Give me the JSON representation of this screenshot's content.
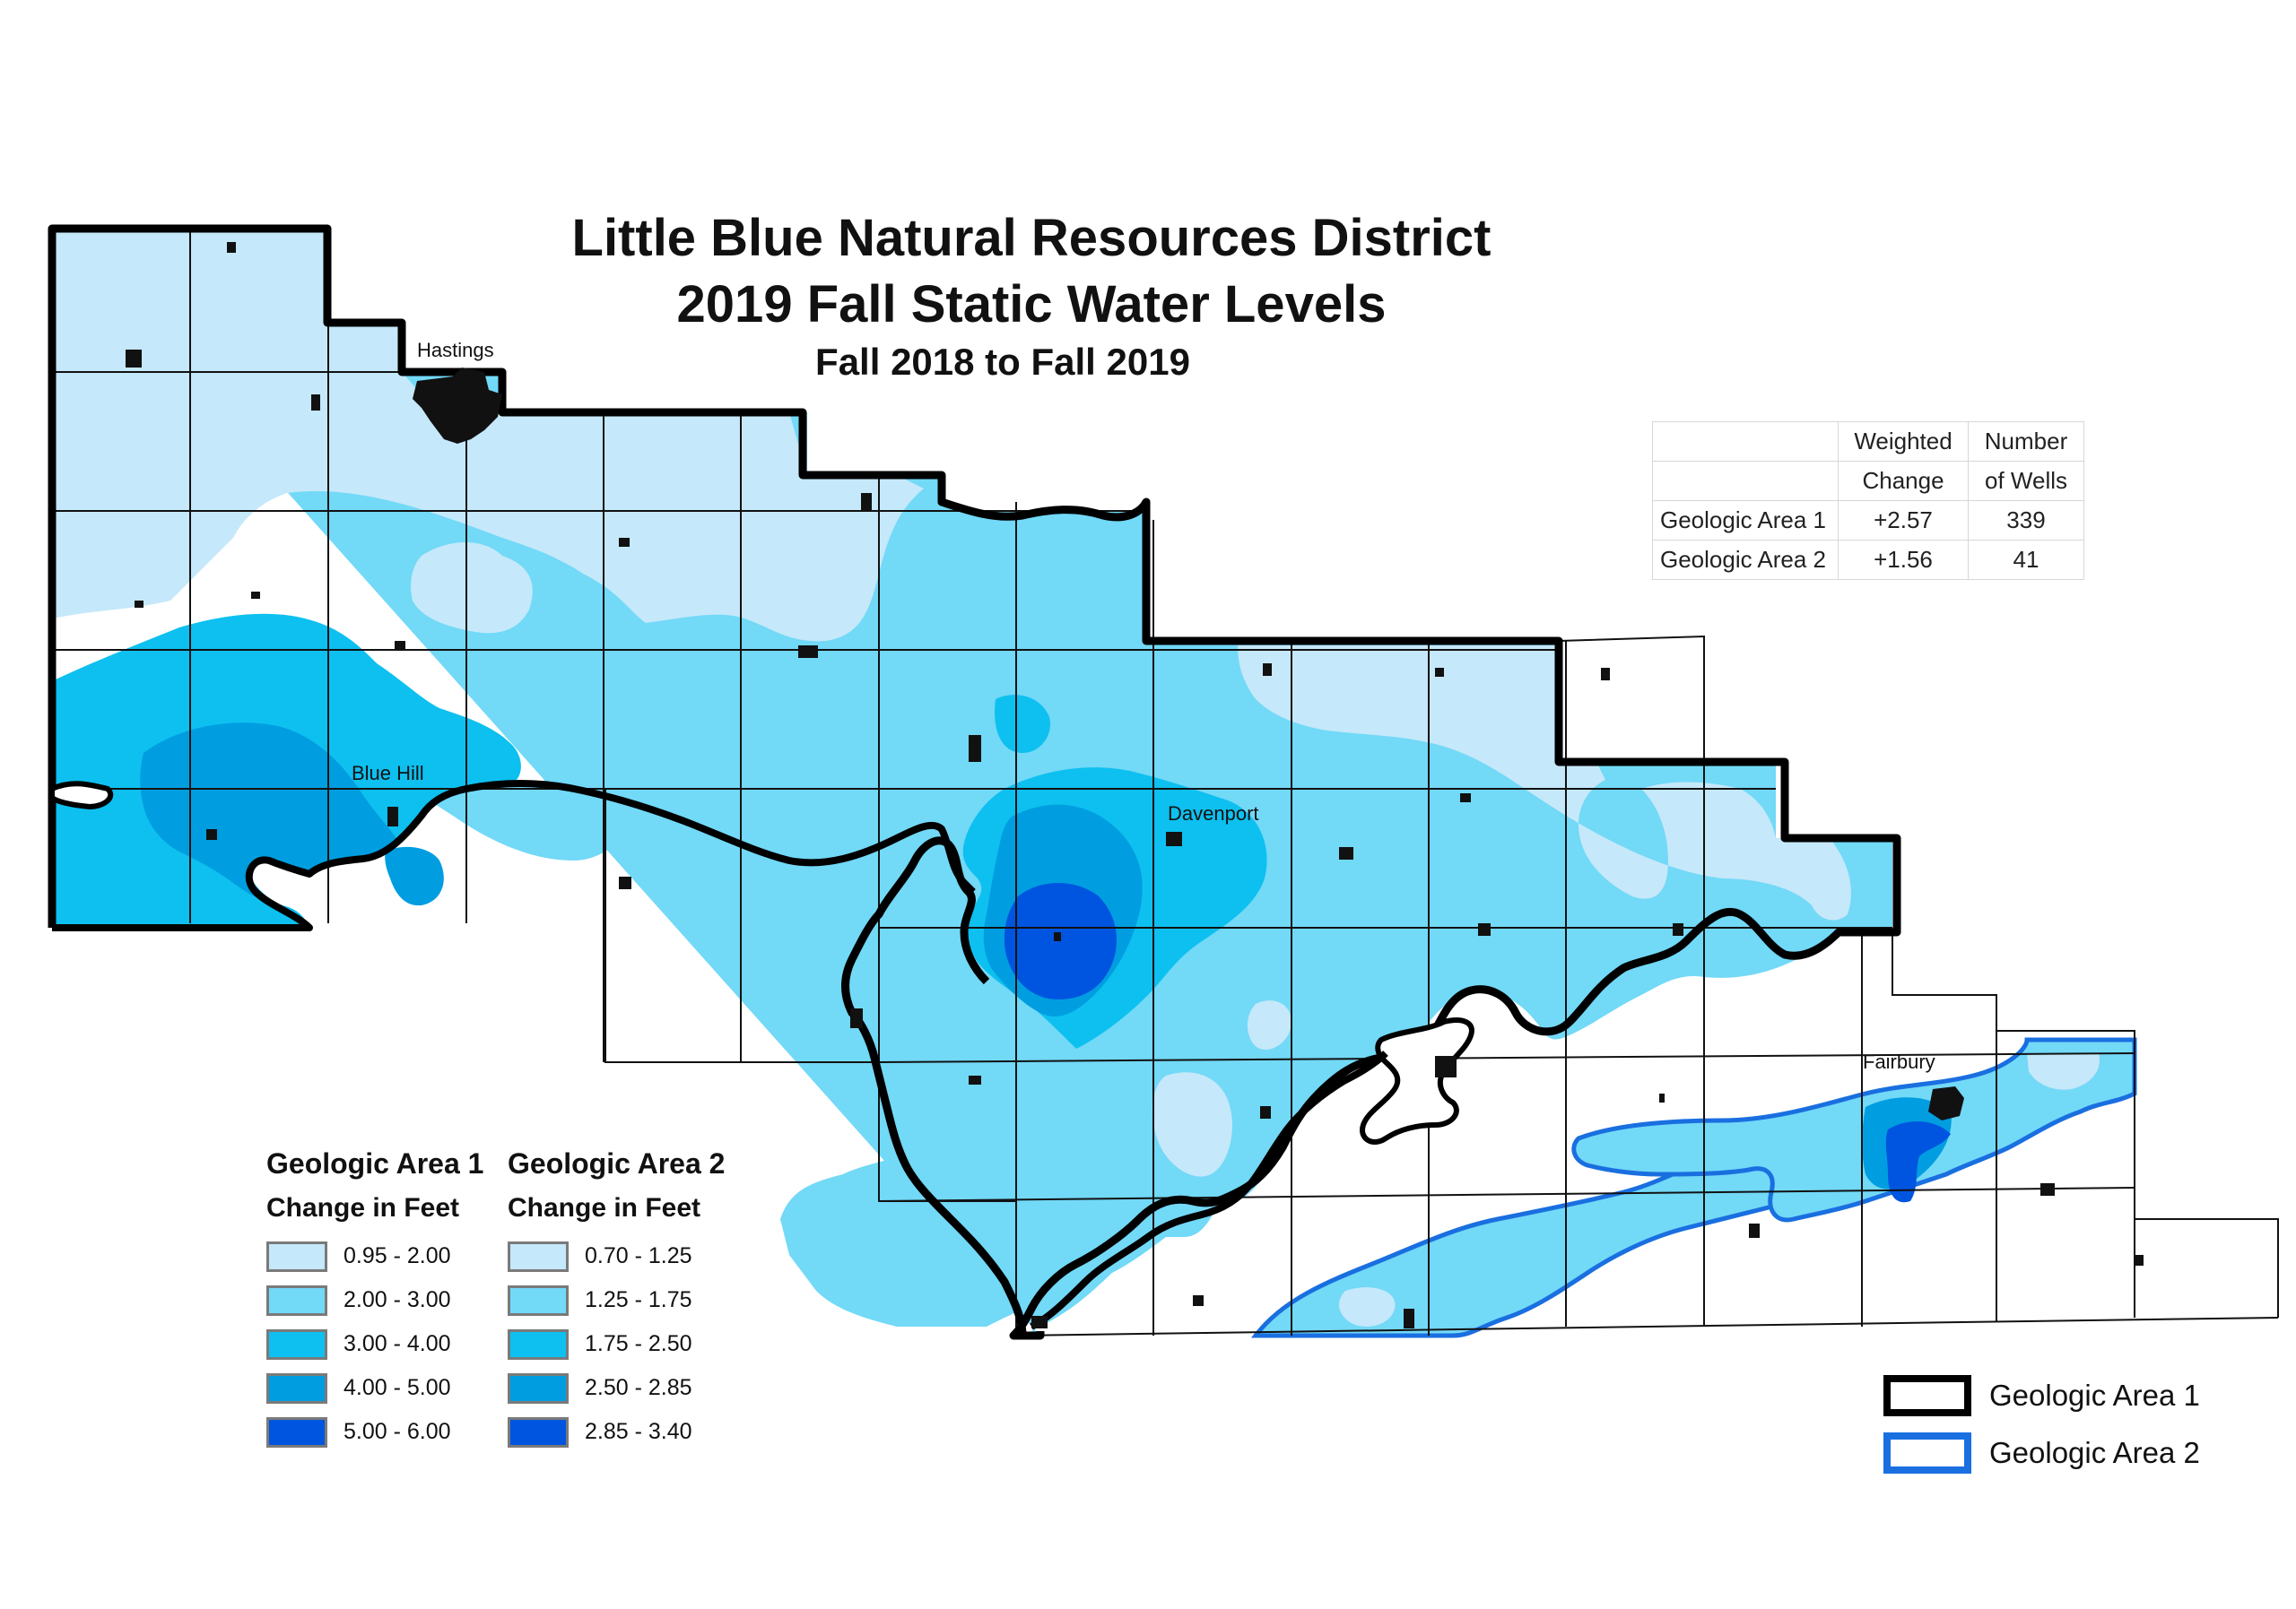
{
  "title": {
    "line1": "Little Blue Natural Resources District",
    "line2": "2019 Fall Static Water Levels",
    "line3": "Fall 2018 to Fall 2019"
  },
  "cities": [
    {
      "name": "Hastings"
    },
    {
      "name": "Blue Hill"
    },
    {
      "name": "Davenport"
    },
    {
      "name": "Fairbury"
    }
  ],
  "stats_table": {
    "header_row1": [
      "",
      "Weighted",
      "Number"
    ],
    "header_row2": [
      "",
      "Change",
      "of Wells"
    ],
    "rows": [
      {
        "area": "Geologic Area 1",
        "change": "+2.57",
        "wells": "339"
      },
      {
        "area": "Geologic Area 2",
        "change": "+1.56",
        "wells": "41"
      }
    ]
  },
  "legend_area1": {
    "title": "Geologic Area 1",
    "subtitle": "Change in Feet",
    "classes": [
      {
        "label": "0.95 - 2.00",
        "color": "#c5e8fa"
      },
      {
        "label": "2.00 - 3.00",
        "color": "#72d9f7"
      },
      {
        "label": "3.00 - 4.00",
        "color": "#0dc0f0"
      },
      {
        "label": "4.00 - 5.00",
        "color": "#009ee0"
      },
      {
        "label": "5.00 - 6.00",
        "color": "#0055e0"
      }
    ]
  },
  "legend_area2": {
    "title": "Geologic Area 2",
    "subtitle": "Change in Feet",
    "classes": [
      {
        "label": "0.70 - 1.25",
        "color": "#c5e8fa"
      },
      {
        "label": "1.25 - 1.75",
        "color": "#72d9f7"
      },
      {
        "label": "1.75 - 2.50",
        "color": "#0dc0f0"
      },
      {
        "label": "2.50 - 2.85",
        "color": "#009ee0"
      },
      {
        "label": "2.85 - 3.40",
        "color": "#0055e0"
      }
    ]
  },
  "area_legend": [
    {
      "label": "Geologic Area 1",
      "border_color": "#000000"
    },
    {
      "label": "Geologic Area 2",
      "border_color": "#1a6fe0"
    }
  ],
  "colors": {
    "class1": "#c5e8fa",
    "class2": "#72d9f7",
    "class3": "#0dc0f0",
    "class4": "#009ee0",
    "class5": "#0055e0",
    "area1_border": "#000000",
    "area2_border": "#1a6fe0",
    "grid": "#111111",
    "town": "#111111"
  }
}
